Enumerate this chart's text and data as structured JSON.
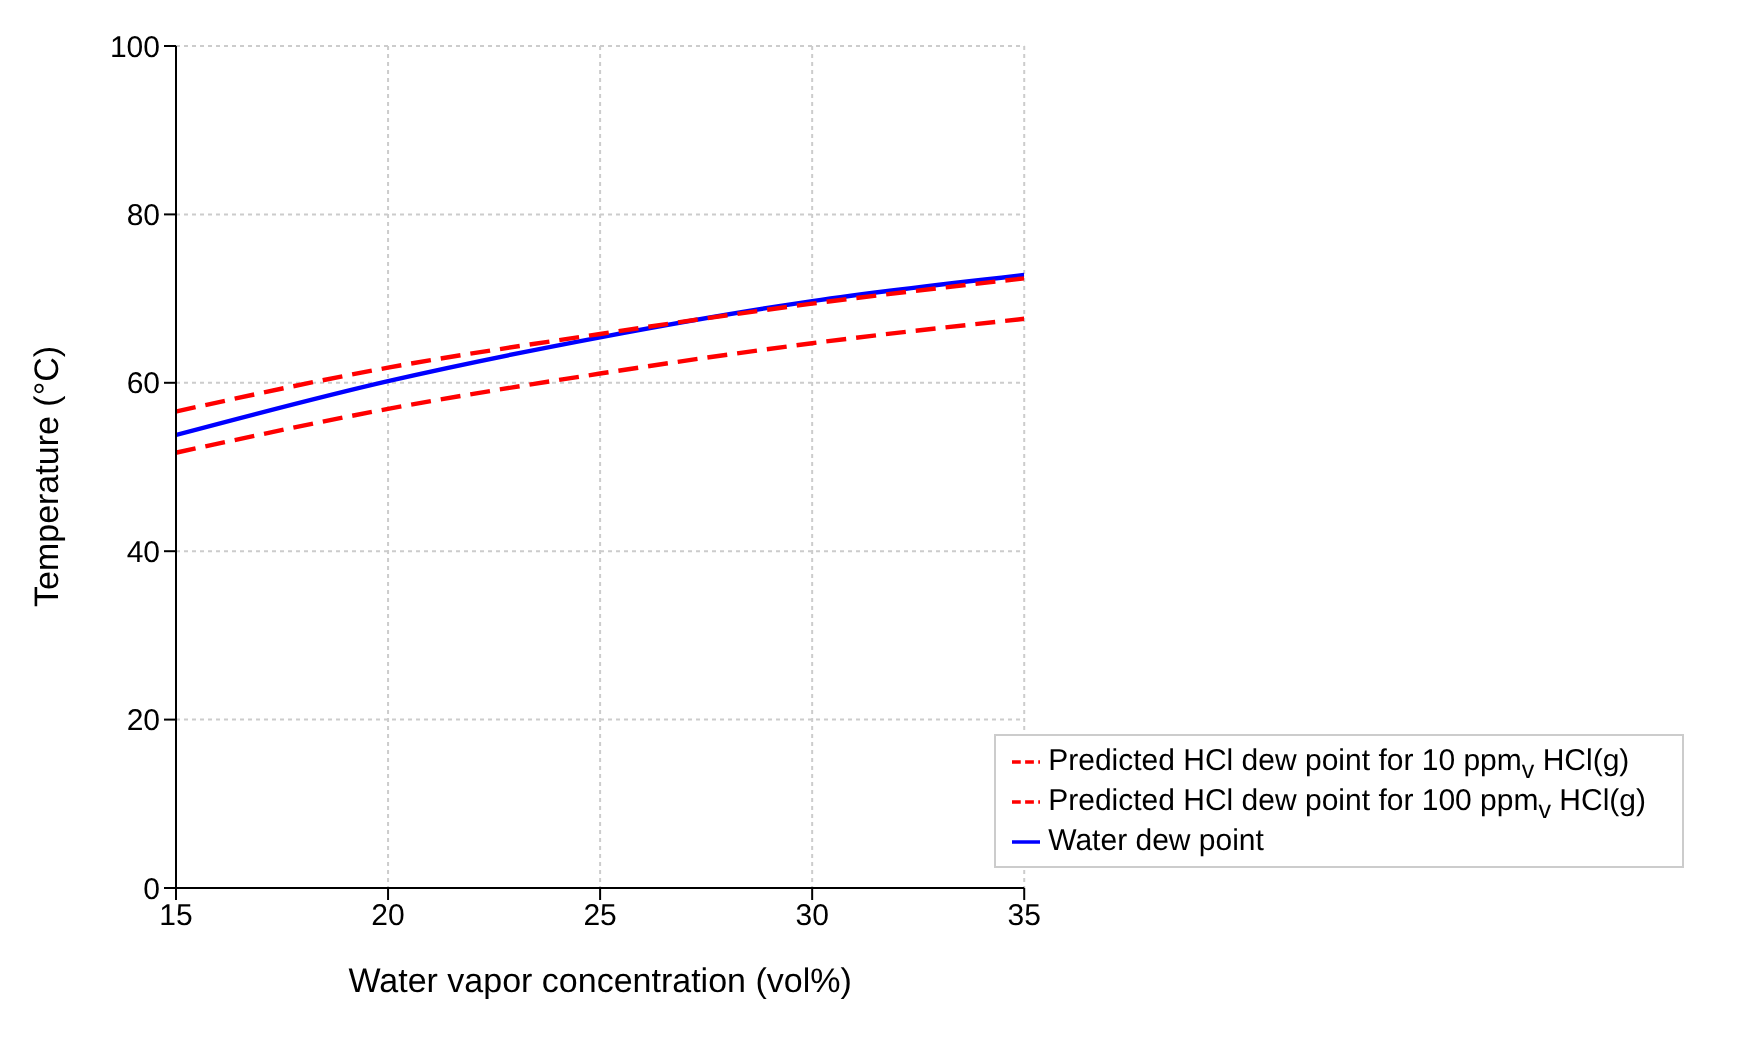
{
  "chart_data": {
    "type": "line",
    "xlabel": "Water vapor concentration (vol%)",
    "ylabel": "Temperature (°C)",
    "x": [
      15,
      20,
      25,
      30,
      35
    ],
    "series": [
      {
        "name": "Water dew point",
        "color": "#0000ff",
        "line_style": "solid",
        "values": [
          53.8,
          60.2,
          65.4,
          69.7,
          72.8
        ]
      },
      {
        "name": "Predicted HCl dew point for 100 ppm$_{v}$ HCl(g)",
        "color": "#ff0000",
        "line_style": "dashed",
        "values": [
          56.6,
          61.8,
          65.8,
          69.4,
          72.4
        ]
      },
      {
        "name": "Predicted HCl dew point for 10 ppm$_{v}$ HCl(g)",
        "color": "#ff0000",
        "line_style": "dashed",
        "values": [
          51.7,
          56.9,
          61.1,
          64.7,
          67.6
        ]
      }
    ],
    "xlim": [
      15,
      35
    ],
    "xticks": [
      15,
      20,
      25,
      30,
      35
    ],
    "ylim": [
      0,
      100
    ],
    "yticks": [
      0,
      20,
      40,
      60,
      80,
      100
    ],
    "grid": true,
    "legend": "bottom right",
    "marker": "none"
  }
}
